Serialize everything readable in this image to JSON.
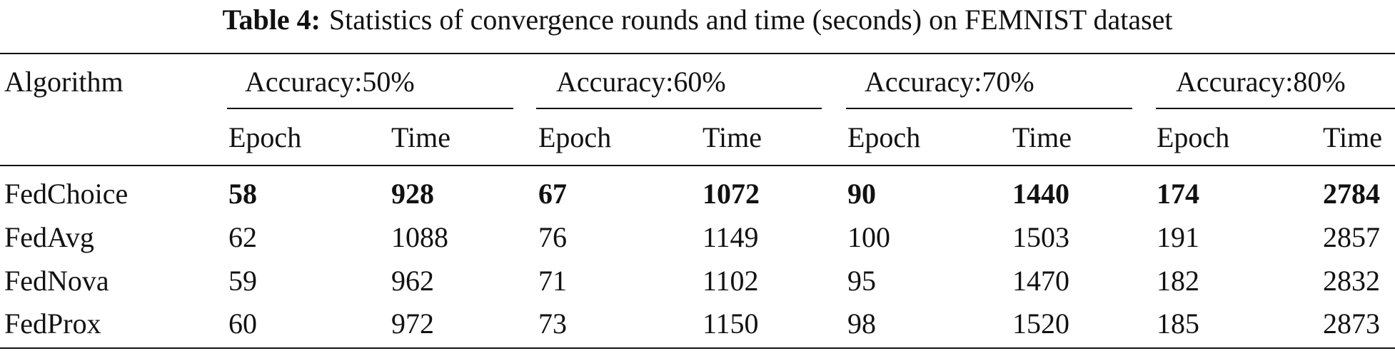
{
  "caption": {
    "label": "Table 4:",
    "text": "Statistics of convergence rounds and time (seconds) on FEMNIST dataset"
  },
  "table": {
    "corner": "Algorithm",
    "groups": [
      "Accuracy:50%",
      "Accuracy:60%",
      "Accuracy:70%",
      "Accuracy:80%"
    ],
    "subheaders": [
      "Epoch",
      "Time",
      "Epoch",
      "Time",
      "Epoch",
      "Time",
      "Epoch",
      "Time"
    ],
    "rows": [
      {
        "name": "FedChoice",
        "bold": true,
        "cells": [
          58,
          928,
          67,
          1072,
          90,
          1440,
          174,
          2784
        ]
      },
      {
        "name": "FedAvg",
        "bold": false,
        "cells": [
          62,
          1088,
          76,
          1149,
          100,
          1503,
          191,
          2857
        ]
      },
      {
        "name": "FedNova",
        "bold": false,
        "cells": [
          59,
          962,
          71,
          1102,
          95,
          1470,
          182,
          2832
        ]
      },
      {
        "name": "FedProx",
        "bold": false,
        "cells": [
          60,
          972,
          73,
          1150,
          98,
          1520,
          185,
          2873
        ]
      }
    ]
  }
}
